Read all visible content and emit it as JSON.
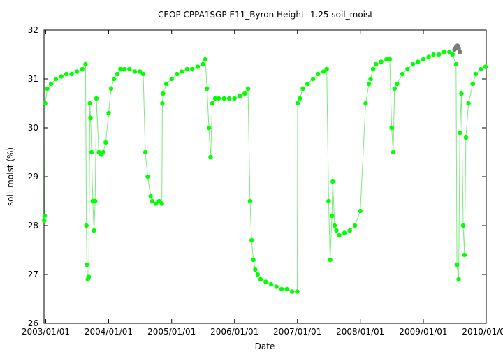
{
  "chart_data": {
    "type": "scatter",
    "title": "CEOP CPPA1SGP E11_Byron Height -1.25 soil_moist",
    "xlabel": "Date",
    "ylabel": "soil_moist (%)",
    "xlim": [
      "2002-12-22",
      "2010-01-01"
    ],
    "ylim": [
      26,
      32
    ],
    "xticks": [
      "2003/01/01",
      "2004/01/01",
      "2005/01/01",
      "2006/01/01",
      "2007/01/01",
      "2008/01/01",
      "2009/01/01",
      "2010/01/01"
    ],
    "yticks": [
      26,
      27,
      28,
      29,
      30,
      31,
      32
    ],
    "grid": false,
    "marker_color": "#00ff00",
    "line_color": "#7fe87f",
    "flagged_color": "#7a7a7a",
    "series": [
      {
        "x": [
          "2002-12-23",
          "2002-12-26",
          "2002-12-29",
          "2003-01-10",
          "2003-02-01",
          "2003-03-01",
          "2003-04-01",
          "2003-05-01",
          "2003-06-01",
          "2003-07-01",
          "2003-08-01",
          "2003-08-20",
          "2003-08-25",
          "2003-08-28",
          "2003-09-02",
          "2003-09-08",
          "2003-09-14",
          "2003-09-18",
          "2003-09-24",
          "2003-10-01",
          "2003-10-08",
          "2003-10-15",
          "2003-10-22",
          "2003-11-05",
          "2003-11-20",
          "2003-12-01",
          "2003-12-15",
          "2004-01-01",
          "2004-01-15",
          "2004-02-01",
          "2004-02-20",
          "2004-03-10",
          "2004-04-01",
          "2004-05-01",
          "2004-06-01",
          "2004-07-01",
          "2004-07-20",
          "2004-08-01",
          "2004-08-15",
          "2004-09-01",
          "2004-09-10",
          "2004-10-01",
          "2004-10-20",
          "2004-11-05",
          "2004-11-08",
          "2004-11-12",
          "2004-12-01",
          "2005-01-01",
          "2005-02-01",
          "2005-03-01",
          "2005-04-01",
          "2005-05-01",
          "2005-06-01",
          "2005-07-01",
          "2005-07-15",
          "2005-07-25",
          "2005-08-05",
          "2005-08-15",
          "2005-08-25",
          "2005-09-10",
          "2005-10-01",
          "2005-11-01",
          "2005-12-01",
          "2006-01-01",
          "2006-02-01",
          "2006-03-01",
          "2006-03-20",
          "2006-04-01",
          "2006-04-10",
          "2006-04-20",
          "2006-05-01",
          "2006-05-15",
          "2006-06-01",
          "2006-07-01",
          "2006-08-01",
          "2006-09-01",
          "2006-10-01",
          "2006-11-01",
          "2006-12-01",
          "2006-12-31",
          "2007-01-02",
          "2007-01-15",
          "2007-02-01",
          "2007-03-01",
          "2007-04-01",
          "2007-05-01",
          "2007-06-01",
          "2007-06-20",
          "2007-07-01",
          "2007-07-10",
          "2007-07-20",
          "2007-07-25",
          "2007-08-05",
          "2007-08-15",
          "2007-09-01",
          "2007-10-01",
          "2007-11-01",
          "2007-12-01",
          "2008-01-01",
          "2008-02-01",
          "2008-02-20",
          "2008-03-01",
          "2008-03-15",
          "2008-04-01",
          "2008-05-01",
          "2008-06-01",
          "2008-06-20",
          "2008-07-01",
          "2008-07-10",
          "2008-07-18",
          "2008-08-01",
          "2008-09-01",
          "2008-10-01",
          "2008-11-01",
          "2008-12-01",
          "2009-01-01",
          "2009-02-01",
          "2009-03-01",
          "2009-04-01",
          "2009-05-01",
          "2009-06-01",
          "2009-06-20",
          "2009-07-10",
          "2009-07-15",
          "2009-07-25",
          "2009-08-01",
          "2009-08-10",
          "2009-08-20",
          "2009-08-28",
          "2009-09-05",
          "2009-09-20",
          "2009-10-15",
          "2009-11-01",
          "2009-12-01",
          "2009-12-28"
        ],
        "y": [
          28.1,
          28.2,
          30.5,
          30.8,
          30.9,
          31.0,
          31.05,
          31.1,
          31.1,
          31.15,
          31.2,
          31.3,
          28.0,
          27.2,
          26.9,
          26.95,
          30.5,
          30.2,
          29.5,
          28.5,
          27.9,
          28.5,
          30.6,
          29.5,
          29.45,
          29.5,
          29.7,
          30.3,
          30.8,
          31.0,
          31.1,
          31.2,
          31.2,
          31.2,
          31.15,
          31.15,
          31.1,
          29.5,
          29.0,
          28.6,
          28.5,
          28.45,
          28.5,
          28.45,
          30.5,
          30.7,
          30.9,
          31.0,
          31.1,
          31.15,
          31.2,
          31.2,
          31.25,
          31.3,
          31.4,
          30.8,
          30.0,
          29.4,
          30.5,
          30.6,
          30.6,
          30.6,
          30.6,
          30.6,
          30.65,
          30.7,
          30.8,
          28.5,
          27.7,
          27.3,
          27.1,
          27.0,
          26.9,
          26.85,
          26.8,
          26.75,
          26.7,
          26.7,
          26.65,
          26.65,
          30.5,
          30.6,
          30.8,
          30.9,
          31.0,
          31.1,
          31.15,
          31.2,
          28.5,
          27.3,
          28.2,
          28.9,
          28.0,
          27.9,
          27.8,
          27.85,
          27.9,
          28.0,
          28.3,
          30.5,
          30.9,
          31.0,
          31.2,
          31.3,
          31.35,
          31.4,
          31.4,
          30.0,
          29.5,
          30.8,
          30.9,
          31.1,
          31.2,
          31.3,
          31.35,
          31.4,
          31.45,
          31.5,
          31.5,
          31.55,
          31.55,
          31.5,
          31.3,
          27.2,
          26.9,
          29.9,
          30.7,
          28.0,
          27.4,
          29.8,
          30.5,
          30.9,
          31.1,
          31.2,
          31.25
        ]
      }
    ],
    "flagged_points": {
      "x": [
        "2009-07-01",
        "2009-07-10",
        "2009-07-18",
        "2009-07-25",
        "2009-08-01"
      ],
      "y": [
        31.6,
        31.65,
        31.68,
        31.62,
        31.55
      ]
    }
  }
}
